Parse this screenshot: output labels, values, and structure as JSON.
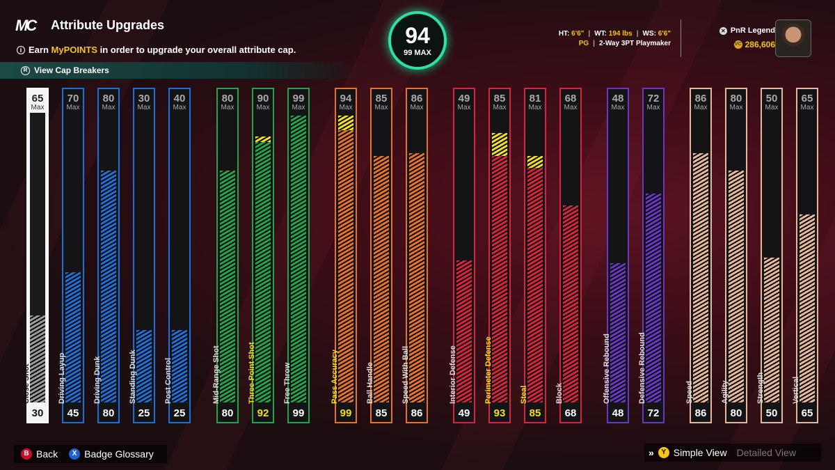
{
  "header": {
    "logo": "MC",
    "title": "Attribute Upgrades",
    "info_prefix": "Earn ",
    "info_highlight": "MyPOINTS",
    "info_suffix": " in order to upgrade your overall attribute cap.",
    "cap_breakers": "View Cap Breakers"
  },
  "overall": {
    "value": "94",
    "max": "99 MAX"
  },
  "player": {
    "ht_label": "HT:",
    "ht": "6'6\"",
    "wt_label": "WT:",
    "wt": "194 lbs",
    "ws_label": "WS:",
    "ws": "6'6\"",
    "position": "PG",
    "archetype": "2-Way 3PT Playmaker",
    "name": "PnR Legend",
    "vc": "286,606"
  },
  "max_label": "Max",
  "colors": {
    "finishing": "#1f6fd6",
    "shooting": "#23a44a",
    "playmaking": "#e8722a",
    "defense": "#d8243c",
    "rebounding": "#6a36c4",
    "physical": "#e8b89a",
    "boost": "#f2e01e",
    "selected": "#9a9a9a"
  },
  "attributes": [
    {
      "name": "Close Shot",
      "max": "65",
      "current": "30",
      "group": "selected",
      "level": 0.3,
      "selected": true
    },
    {
      "name": "Driving Layup",
      "max": "70",
      "current": "45",
      "group": "finishing",
      "level": 0.45
    },
    {
      "name": "Driving Dunk",
      "max": "80",
      "current": "80",
      "group": "finishing",
      "level": 0.8
    },
    {
      "name": "Standing Dunk",
      "max": "30",
      "current": "25",
      "group": "finishing",
      "level": 0.25
    },
    {
      "name": "Post Control",
      "max": "40",
      "current": "25",
      "group": "finishing",
      "level": 0.25
    },
    {
      "name": "Mid-Range Shot",
      "max": "80",
      "current": "80",
      "group": "shooting",
      "level": 0.8
    },
    {
      "name": "Three-Point Shot",
      "max": "90",
      "current": "92",
      "group": "shooting",
      "level": 0.9,
      "boost": 0.02,
      "highlight": true
    },
    {
      "name": "Free Throw",
      "max": "99",
      "current": "99",
      "group": "shooting",
      "level": 0.99
    },
    {
      "name": "Pass Accuracy",
      "max": "94",
      "current": "99",
      "group": "playmaking",
      "level": 0.94,
      "boost": 0.05,
      "highlight": true
    },
    {
      "name": "Ball Handle",
      "max": "85",
      "current": "85",
      "group": "playmaking",
      "level": 0.85
    },
    {
      "name": "Speed With Ball",
      "max": "86",
      "current": "86",
      "group": "playmaking",
      "level": 0.86
    },
    {
      "name": "Interior Defense",
      "max": "49",
      "current": "49",
      "group": "defense",
      "level": 0.49
    },
    {
      "name": "Perimeter Defense",
      "max": "85",
      "current": "93",
      "group": "defense",
      "level": 0.85,
      "boost": 0.08,
      "highlight": true
    },
    {
      "name": "Steal",
      "max": "81",
      "current": "85",
      "group": "defense",
      "level": 0.81,
      "boost": 0.04,
      "highlight": true
    },
    {
      "name": "Block",
      "max": "68",
      "current": "68",
      "group": "defense",
      "level": 0.68
    },
    {
      "name": "Offensive Rebound",
      "max": "48",
      "current": "48",
      "group": "rebounding",
      "level": 0.48
    },
    {
      "name": "Defensive Rebound",
      "max": "72",
      "current": "72",
      "group": "rebounding",
      "level": 0.72
    },
    {
      "name": "Speed",
      "max": "86",
      "current": "86",
      "group": "physical",
      "level": 0.86
    },
    {
      "name": "Agility",
      "max": "80",
      "current": "80",
      "group": "physical",
      "level": 0.8
    },
    {
      "name": "Strength",
      "max": "50",
      "current": "50",
      "group": "physical",
      "level": 0.5
    },
    {
      "name": "Vertical",
      "max": "65",
      "current": "65",
      "group": "physical",
      "level": 0.65
    }
  ],
  "footer": {
    "back_btn": "B",
    "back": "Back",
    "glossary_btn": "X",
    "glossary": "Badge Glossary",
    "view_btn": "Y",
    "simple_view": "Simple View",
    "detailed_view": "Detailed View",
    "lb_icon": "LB"
  }
}
